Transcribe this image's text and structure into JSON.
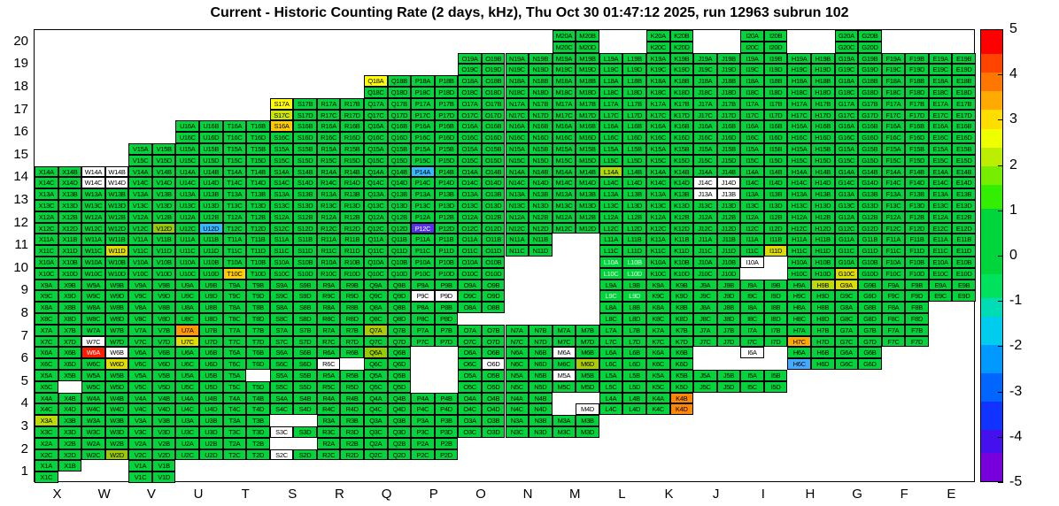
{
  "chart_data": {
    "type": "heatmap",
    "title": "Current - Historic Counting Rate (2 days, kHz), Thu Oct 30 01:47:12 2025, run 12963 subrun 102",
    "columns": [
      "X",
      "W",
      "V",
      "U",
      "T",
      "S",
      "R",
      "Q",
      "P",
      "O",
      "N",
      "M",
      "L",
      "K",
      "J",
      "I",
      "H",
      "G",
      "F",
      "E"
    ],
    "row_labels": [
      "20",
      "19",
      "18",
      "17",
      "16",
      "15",
      "14",
      "13",
      "12",
      "11",
      "10",
      "9",
      "8",
      "7",
      "6",
      "5",
      "4",
      "3",
      "2",
      "1"
    ],
    "quadrants": [
      "A",
      "B",
      "C",
      "D"
    ],
    "default_color": "#00d53c",
    "default_value": 0,
    "value_range": [
      -5,
      5
    ],
    "rows": [
      {
        "row": 20,
        "cols": [
          "M",
          "K",
          "I",
          "G"
        ]
      },
      {
        "row": 19,
        "cols": [
          "O",
          "N",
          "M",
          "L",
          "K",
          "J",
          "I",
          "H",
          "G",
          "F",
          "E"
        ]
      },
      {
        "row": 18,
        "cols": [
          "Q",
          "P",
          "O",
          "N",
          "M",
          "L",
          "K",
          "J",
          "I",
          "H",
          "G",
          "F",
          "E"
        ]
      },
      {
        "row": 17,
        "cols": [
          "S",
          "R",
          "Q",
          "P",
          "O",
          "N",
          "M",
          "L",
          "K",
          "J",
          "I",
          "H",
          "G",
          "F",
          "E"
        ]
      },
      {
        "row": 16,
        "cols": [
          "U",
          "T",
          "S",
          "R",
          "Q",
          "P",
          "O",
          "N",
          "M",
          "L",
          "K",
          "J",
          "I",
          "H",
          "G",
          "F",
          "E"
        ]
      },
      {
        "row": 15,
        "cols": [
          "V",
          "U",
          "T",
          "S",
          "R",
          "Q",
          "P",
          "O",
          "N",
          "M",
          "L",
          "K",
          "J",
          "I",
          "H",
          "G",
          "F",
          "E"
        ]
      },
      {
        "row": 14,
        "cols": [
          "X",
          "W",
          "V",
          "U",
          "T",
          "S",
          "R",
          "Q",
          "P",
          "O",
          "N",
          "M",
          "L",
          "K",
          "J",
          "I",
          "H",
          "G",
          "F",
          "E"
        ]
      },
      {
        "row": 13,
        "cols": [
          "X",
          "W",
          "V",
          "U",
          "T",
          "S",
          "R",
          "Q",
          "P",
          "O",
          "N",
          "M",
          "L",
          "K",
          "J",
          "I",
          "H",
          "G",
          "F",
          "E"
        ]
      },
      {
        "row": 12,
        "cols": [
          "X",
          "W",
          "V",
          "U",
          "T",
          "S",
          "R",
          "Q",
          "P",
          "O",
          "N",
          "M",
          "L",
          "K",
          "J",
          "I",
          "H",
          "G",
          "F",
          "E"
        ]
      },
      {
        "row": 11,
        "cols": [
          "X",
          "W",
          "V",
          "U",
          "T",
          "S",
          "R",
          "Q",
          "P",
          "O",
          "N",
          "L",
          "K",
          "J",
          "I",
          "H",
          "G",
          "F",
          "E"
        ]
      },
      {
        "row": 10,
        "cols": [
          "X",
          "W",
          "V",
          "U",
          "T",
          "S",
          "R",
          "Q",
          "P",
          "O",
          "L",
          "K",
          "J",
          "I",
          "H",
          "G",
          "F",
          "E"
        ]
      },
      {
        "row": 9,
        "cols": [
          "X",
          "W",
          "V",
          "U",
          "T",
          "S",
          "R",
          "Q",
          "P",
          "O",
          "L",
          "K",
          "J",
          "I",
          "H",
          "G",
          "F",
          "E"
        ]
      },
      {
        "row": 8,
        "cols": [
          "X",
          "W",
          "V",
          "U",
          "T",
          "S",
          "R",
          "Q",
          "P",
          "O",
          "L",
          "K",
          "J",
          "I",
          "H",
          "G",
          "F"
        ]
      },
      {
        "row": 7,
        "cols": [
          "X",
          "W",
          "V",
          "U",
          "T",
          "S",
          "R",
          "Q",
          "P",
          "O",
          "N",
          "M",
          "L",
          "K",
          "J",
          "I",
          "H",
          "G",
          "F"
        ]
      },
      {
        "row": 6,
        "cols": [
          "X",
          "W",
          "V",
          "U",
          "T",
          "S",
          "R",
          "Q",
          "O",
          "N",
          "M",
          "L",
          "K",
          "I",
          "H",
          "G"
        ]
      },
      {
        "row": 5,
        "cols": [
          "X",
          "W",
          "V",
          "U",
          "T",
          "S",
          "R",
          "Q",
          "O",
          "N",
          "M",
          "L",
          "K",
          "J",
          "I"
        ]
      },
      {
        "row": 4,
        "cols": [
          "X",
          "W",
          "V",
          "U",
          "T",
          "S",
          "R",
          "Q",
          "P",
          "O",
          "N",
          "M",
          "L",
          "K"
        ]
      },
      {
        "row": 3,
        "cols": [
          "X",
          "W",
          "V",
          "U",
          "T",
          "S",
          "R",
          "Q",
          "P",
          "O",
          "N",
          "M"
        ]
      },
      {
        "row": 2,
        "cols": [
          "X",
          "W",
          "V",
          "U",
          "T",
          "S",
          "R",
          "Q",
          "P"
        ]
      },
      {
        "row": 1,
        "cols": [
          "X",
          "V"
        ]
      }
    ],
    "missing_quads": [
      "X1D",
      "X5D",
      "T5B",
      "R6D",
      "O8C",
      "O8D",
      "I6B",
      "I6C",
      "I6D",
      "I10B",
      "I10C",
      "I10D",
      "M4A",
      "M4B",
      "M4C",
      "S3A",
      "S3B",
      "S2A",
      "S2B"
    ],
    "overrides": {
      "Q18A": {
        "color": "#ffff00",
        "value": 2
      },
      "S17A": {
        "color": "#ffff00",
        "value": 2
      },
      "S17C": {
        "color": "#cce800",
        "value": 1.6
      },
      "S16A": {
        "color": "#ffcc00",
        "value": 2.6
      },
      "P14A": {
        "color": "#33bbff",
        "value": -2
      },
      "L14A": {
        "color": "#aadd00",
        "value": 1.4
      },
      "W14A": {
        "color": "#ffffff",
        "value": null
      },
      "W14B": {
        "color": "#ffffff",
        "value": null
      },
      "W14C": {
        "color": "#ffffff",
        "value": null
      },
      "W14D": {
        "color": "#ffffff",
        "value": null
      },
      "J13A": {
        "color": "#ffffff",
        "value": null
      },
      "J13B": {
        "color": "#ffffff",
        "value": null
      },
      "J14C": {
        "color": "#ffffff",
        "value": null
      },
      "J14D": {
        "color": "#ffffff",
        "value": null
      },
      "V12D": {
        "color": "#99cc00",
        "value": 1.2
      },
      "U12D": {
        "color": "#33bbff",
        "value": -2
      },
      "P12C": {
        "color": "#5533ee",
        "value": -3.8,
        "text": "#ffffff"
      },
      "W11D": {
        "color": "#dddd00",
        "value": 1.9
      },
      "I11D": {
        "color": "#dddd00",
        "value": 1.9
      },
      "T10C": {
        "color": "#ffcc00",
        "value": 2.6
      },
      "G10C": {
        "color": "#dddd00",
        "value": 1.9
      },
      "I10A": {
        "color": "#ffffff",
        "value": null
      },
      "G9A": {
        "color": "#dddd00",
        "value": 1.9
      },
      "H9B": {
        "color": "#bbdd00",
        "value": 1.4
      },
      "P9C": {
        "color": "#ffffff",
        "value": null
      },
      "P9D": {
        "color": "#ffffff",
        "value": null
      },
      "W7C": {
        "color": "#ffffff",
        "value": null
      },
      "U7A": {
        "color": "#ff9900",
        "value": 3.2
      },
      "U7C": {
        "color": "#dddd00",
        "value": 1.9
      },
      "Q7A": {
        "color": "#aacc00",
        "value": 1.2
      },
      "H7C": {
        "color": "#ffaa00",
        "value": 3
      },
      "W6A": {
        "color": "#ff1a00",
        "value": 5,
        "text": "#ffffff"
      },
      "W6B": {
        "color": "#ffffff",
        "value": null
      },
      "W6D": {
        "color": "#dddd00",
        "value": 1.9
      },
      "Q6A": {
        "color": "#99cc00",
        "value": 1.2
      },
      "R6C": {
        "color": "#ffffff",
        "value": null
      },
      "M6A": {
        "color": "#ffffff",
        "value": null
      },
      "M6D": {
        "color": "#aacc00",
        "value": 1.2
      },
      "O6D": {
        "color": "#ffffff",
        "value": null
      },
      "I6A": {
        "color": "#ffffff",
        "value": null
      },
      "H6C": {
        "color": "#44aaff",
        "value": -2.2
      },
      "M5A": {
        "color": "#ffffff",
        "value": null
      },
      "M4D": {
        "color": "#ffffff",
        "value": null
      },
      "K4B": {
        "color": "#ff8800",
        "value": 3.8
      },
      "K4D": {
        "color": "#ff8800",
        "value": 3.8
      },
      "X3A": {
        "color": "#bbdd00",
        "value": 1.2
      },
      "S3C": {
        "color": "#ffffff",
        "value": null
      },
      "W2D": {
        "color": "#99cc00",
        "value": 1.2
      },
      "S2C": {
        "color": "#ffffff",
        "value": null
      },
      "L10A": {
        "text": "#eeeeee"
      },
      "L10B": {
        "text": "#eeeeee"
      },
      "L10C": {
        "text": "#eeeeee"
      },
      "L10D": {
        "text": "#eeeeee"
      },
      "L9C": {
        "text": "#eeeeee"
      },
      "L9D": {
        "text": "#eeeeee"
      }
    },
    "colorbar": {
      "ticks": [
        "5",
        "4",
        "3",
        "2",
        "1",
        "0",
        "-1",
        "-2",
        "-3",
        "-4",
        "-5"
      ],
      "segments": [
        {
          "color": "#ff0000",
          "h": 5
        },
        {
          "color": "#ff4400",
          "h": 4
        },
        {
          "color": "#ff7700",
          "h": 4
        },
        {
          "color": "#ffaa00",
          "h": 4
        },
        {
          "color": "#ffdd00",
          "h": 4
        },
        {
          "color": "#eeff00",
          "h": 4
        },
        {
          "color": "#bbee00",
          "h": 4
        },
        {
          "color": "#77ee00",
          "h": 4
        },
        {
          "color": "#33ee00",
          "h": 5
        },
        {
          "color": "#00d53c",
          "h": 14
        },
        {
          "color": "#00e25e",
          "h": 5
        },
        {
          "color": "#00dcb4",
          "h": 4
        },
        {
          "color": "#00ccee",
          "h": 6
        },
        {
          "color": "#0099ff",
          "h": 6
        },
        {
          "color": "#0066ff",
          "h": 6
        },
        {
          "color": "#1133ff",
          "h": 6
        },
        {
          "color": "#4411ee",
          "h": 5
        },
        {
          "color": "#7700dd",
          "h": 6
        }
      ]
    }
  }
}
